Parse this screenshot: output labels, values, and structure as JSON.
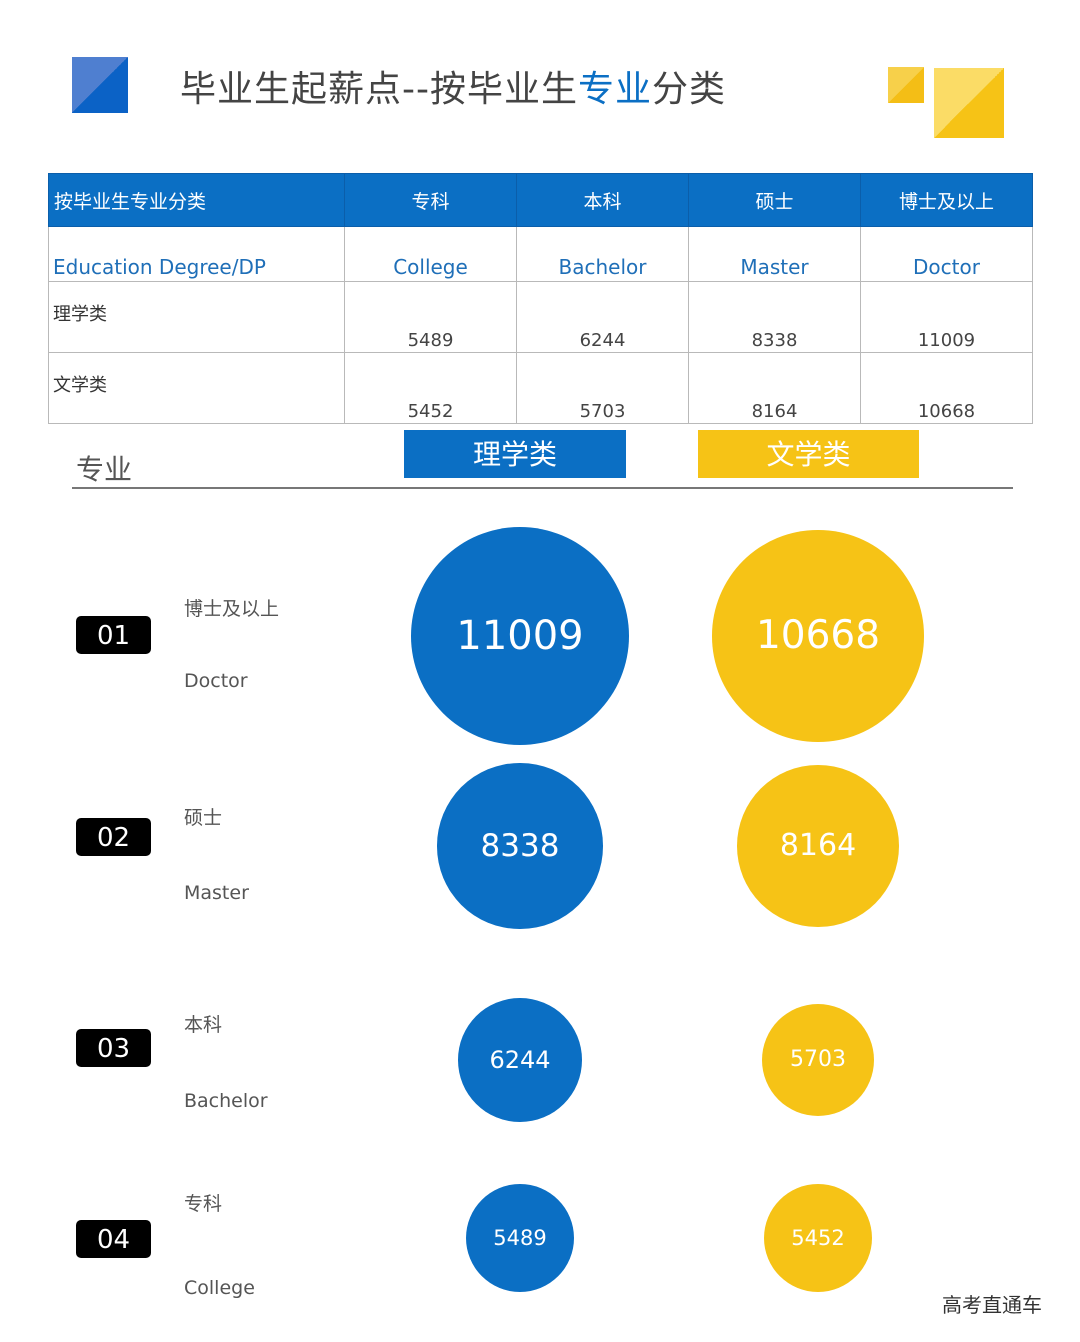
{
  "title": {
    "prefix": "毕业生起薪点--按毕业生",
    "accent": "专业",
    "suffix": "分类"
  },
  "table": {
    "header": [
      "按毕业生专业分类",
      "专科",
      "本科",
      "硕士",
      "博士及以上"
    ],
    "header_en": [
      "Education Degree/DP",
      "College",
      "Bachelor",
      "Master",
      "Doctor"
    ],
    "rows": [
      {
        "label": "理学类",
        "values": [
          "5489",
          "6244",
          "8338",
          "11009"
        ]
      },
      {
        "label": "文学类",
        "values": [
          "5452",
          "5703",
          "8164",
          "10668"
        ]
      }
    ]
  },
  "section": {
    "major_label": "专业",
    "legend_science": "理学类",
    "legend_liberal": "文学类"
  },
  "degrees": [
    {
      "badge": "01",
      "cn": "博士及以上",
      "en": "Doctor"
    },
    {
      "badge": "02",
      "cn": "硕士",
      "en": "Master"
    },
    {
      "badge": "03",
      "cn": "本科",
      "en": "Bachelor"
    },
    {
      "badge": "04",
      "cn": "专科",
      "en": "College"
    }
  ],
  "colors": {
    "science": "#0b6fc4",
    "liberal": "#f6c316"
  },
  "chart_data": {
    "type": "bubble",
    "categories": [
      "博士及以上",
      "硕士",
      "本科",
      "专科"
    ],
    "series": [
      {
        "name": "理学类",
        "values": [
          11009,
          8338,
          6244,
          5489
        ]
      },
      {
        "name": "文学类",
        "values": [
          10668,
          8164,
          5703,
          5452
        ]
      }
    ]
  },
  "watermark": "高考直通车"
}
